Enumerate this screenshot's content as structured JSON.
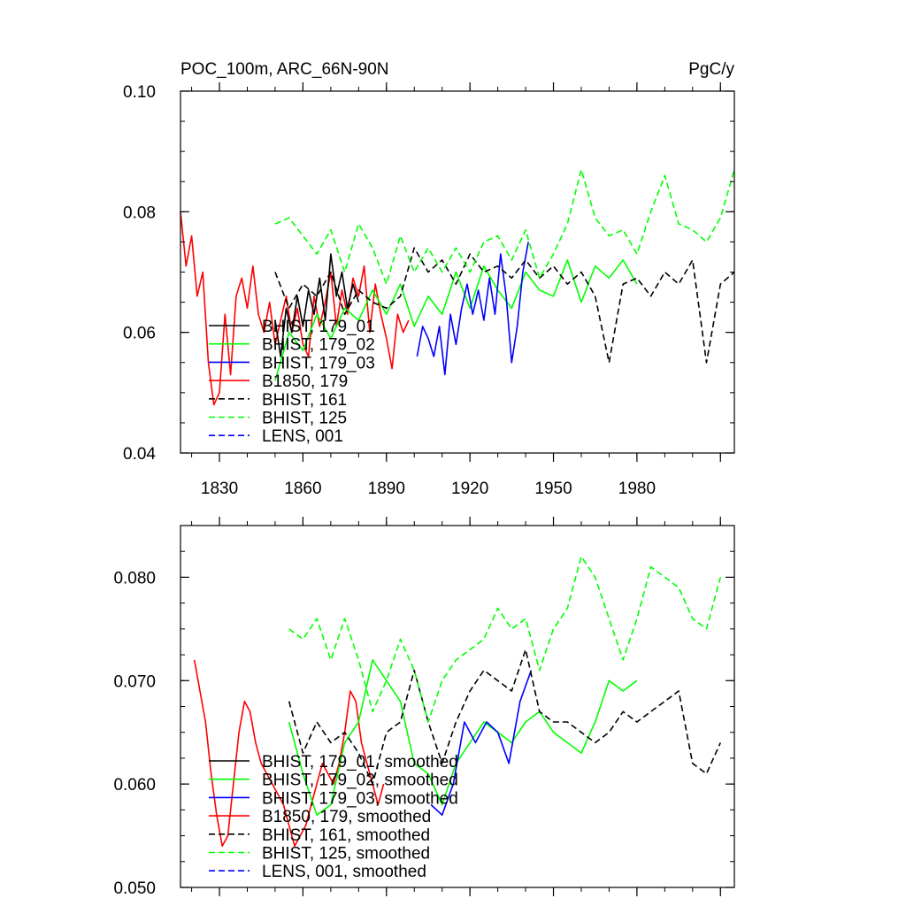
{
  "chart_data": [
    {
      "type": "line",
      "title_left": "POC_100m, ARC_66N-90N",
      "title_right": "PgC/y",
      "xlabel": "",
      "ylabel": "",
      "xlim": [
        1816,
        2015
      ],
      "ylim": [
        0.04,
        0.1
      ],
      "x_ticks": [
        1830,
        1860,
        1890,
        1920,
        1950,
        1980
      ],
      "x_tick_labels": [
        "1830",
        "1860",
        "1890",
        "1920",
        "1950",
        "1980"
      ],
      "y_ticks": [
        0.04,
        0.06,
        0.08,
        0.1
      ],
      "y_tick_labels": [
        "0.04",
        "0.06",
        "0.08",
        "0.10"
      ],
      "legend": [
        {
          "label": "BHIST, 179_01",
          "color": "#000000",
          "dash": "solid"
        },
        {
          "label": "BHIST, 179_02",
          "color": "#00ff00",
          "dash": "solid"
        },
        {
          "label": "BHIST, 179_03",
          "color": "#0000ff",
          "dash": "solid"
        },
        {
          "label": "B1850, 179",
          "color": "#ff0000",
          "dash": "solid"
        },
        {
          "label": "BHIST, 161",
          "color": "#000000",
          "dash": "dashed"
        },
        {
          "label": "BHIST, 125",
          "color": "#00ff00",
          "dash": "dashed"
        },
        {
          "label": "LENS, 001",
          "color": "#0000ff",
          "dash": "dashed"
        }
      ],
      "series": [
        {
          "name": "B1850, 179",
          "color": "#ff0000",
          "dash": "solid",
          "x": [
            1816,
            1818,
            1820,
            1822,
            1824,
            1826,
            1828,
            1830,
            1832,
            1834,
            1836,
            1838,
            1840,
            1842,
            1844,
            1846,
            1848,
            1850,
            1852,
            1854,
            1856,
            1858,
            1860,
            1862,
            1864,
            1866,
            1868,
            1870,
            1872,
            1874,
            1876,
            1878,
            1880,
            1882,
            1884,
            1886,
            1888,
            1890,
            1892,
            1894,
            1896,
            1898
          ],
          "y": [
            0.08,
            0.071,
            0.076,
            0.066,
            0.07,
            0.055,
            0.048,
            0.05,
            0.063,
            0.053,
            0.066,
            0.069,
            0.064,
            0.071,
            0.063,
            0.06,
            0.065,
            0.058,
            0.062,
            0.066,
            0.06,
            0.064,
            0.058,
            0.056,
            0.066,
            0.061,
            0.065,
            0.07,
            0.061,
            0.067,
            0.063,
            0.069,
            0.066,
            0.071,
            0.06,
            0.068,
            0.063,
            0.059,
            0.054,
            0.063,
            0.06,
            0.062
          ]
        },
        {
          "name": "BHIST, 179_01",
          "color": "#000000",
          "dash": "solid",
          "x": [
            1850,
            1852,
            1854,
            1856,
            1858,
            1860,
            1862,
            1864,
            1866,
            1868,
            1870,
            1872,
            1874,
            1876,
            1878,
            1880
          ],
          "y": [
            0.062,
            0.056,
            0.064,
            0.06,
            0.066,
            0.061,
            0.067,
            0.063,
            0.069,
            0.062,
            0.073,
            0.066,
            0.07,
            0.064,
            0.068,
            0.065
          ]
        },
        {
          "name": "BHIST, 179_02",
          "color": "#00ff00",
          "dash": "solid",
          "x": [
            1850,
            1855,
            1860,
            1865,
            1870,
            1875,
            1880,
            1885,
            1890,
            1895,
            1900,
            1905,
            1910,
            1915,
            1920,
            1925,
            1930,
            1935,
            1940,
            1945,
            1950,
            1955,
            1960,
            1965,
            1970,
            1975,
            1980
          ],
          "y": [
            0.052,
            0.06,
            0.057,
            0.063,
            0.059,
            0.064,
            0.062,
            0.067,
            0.063,
            0.068,
            0.061,
            0.066,
            0.063,
            0.07,
            0.064,
            0.071,
            0.067,
            0.064,
            0.07,
            0.067,
            0.066,
            0.072,
            0.065,
            0.071,
            0.069,
            0.072,
            0.068
          ]
        },
        {
          "name": "BHIST, 179_03",
          "color": "#0000ff",
          "dash": "solid",
          "x": [
            1901,
            1903,
            1905,
            1907,
            1909,
            1911,
            1913,
            1915,
            1917,
            1919,
            1921,
            1923,
            1925,
            1927,
            1929,
            1931,
            1933,
            1935,
            1937,
            1939,
            1941
          ],
          "y": [
            0.056,
            0.061,
            0.059,
            0.056,
            0.061,
            0.053,
            0.063,
            0.058,
            0.064,
            0.068,
            0.063,
            0.067,
            0.062,
            0.069,
            0.063,
            0.073,
            0.066,
            0.055,
            0.061,
            0.07,
            0.075
          ]
        },
        {
          "name": "BHIST, 161",
          "color": "#000000",
          "dash": "dashed",
          "x": [
            1850,
            1855,
            1860,
            1865,
            1870,
            1875,
            1880,
            1885,
            1890,
            1895,
            1900,
            1905,
            1910,
            1915,
            1920,
            1925,
            1930,
            1935,
            1940,
            1945,
            1950,
            1955,
            1960,
            1965,
            1970,
            1975,
            1980,
            1985,
            1990,
            1995,
            2000,
            2005,
            2010,
            2015
          ],
          "y": [
            0.07,
            0.064,
            0.068,
            0.066,
            0.07,
            0.063,
            0.067,
            0.065,
            0.064,
            0.066,
            0.074,
            0.07,
            0.072,
            0.068,
            0.073,
            0.07,
            0.071,
            0.069,
            0.072,
            0.069,
            0.071,
            0.068,
            0.07,
            0.066,
            0.055,
            0.068,
            0.069,
            0.066,
            0.07,
            0.068,
            0.072,
            0.055,
            0.068,
            0.07
          ]
        },
        {
          "name": "BHIST, 125",
          "color": "#00ff00",
          "dash": "dashed",
          "x": [
            1850,
            1855,
            1860,
            1865,
            1870,
            1875,
            1880,
            1885,
            1890,
            1895,
            1900,
            1905,
            1910,
            1915,
            1920,
            1925,
            1930,
            1935,
            1940,
            1945,
            1950,
            1955,
            1960,
            1965,
            1970,
            1975,
            1980,
            1985,
            1990,
            1995,
            2000,
            2005,
            2010,
            2015
          ],
          "y": [
            0.078,
            0.079,
            0.076,
            0.073,
            0.077,
            0.07,
            0.078,
            0.074,
            0.068,
            0.076,
            0.07,
            0.074,
            0.07,
            0.074,
            0.07,
            0.075,
            0.076,
            0.072,
            0.077,
            0.069,
            0.073,
            0.078,
            0.087,
            0.079,
            0.076,
            0.077,
            0.073,
            0.08,
            0.086,
            0.078,
            0.077,
            0.075,
            0.079,
            0.087
          ]
        }
      ]
    },
    {
      "type": "line",
      "xlabel": "",
      "ylabel": "",
      "xlim": [
        1816,
        2015
      ],
      "ylim": [
        0.05,
        0.085
      ],
      "y_ticks": [
        0.05,
        0.06,
        0.07,
        0.08
      ],
      "y_tick_labels": [
        "0.050",
        "0.060",
        "0.070",
        "0.080"
      ],
      "legend": [
        {
          "label": "BHIST, 179_01, smoothed",
          "color": "#000000",
          "dash": "solid"
        },
        {
          "label": "BHIST, 179_02, smoothed",
          "color": "#00ff00",
          "dash": "solid"
        },
        {
          "label": "BHIST, 179_03, smoothed",
          "color": "#0000ff",
          "dash": "solid"
        },
        {
          "label": "B1850, 179, smoothed",
          "color": "#ff0000",
          "dash": "solid"
        },
        {
          "label": "BHIST, 161, smoothed",
          "color": "#000000",
          "dash": "dashed"
        },
        {
          "label": "BHIST, 125, smoothed",
          "color": "#00ff00",
          "dash": "dashed"
        },
        {
          "label": "LENS, 001, smoothed",
          "color": "#0000ff",
          "dash": "dashed"
        }
      ],
      "series": [
        {
          "name": "B1850, 179, smoothed",
          "color": "#ff0000",
          "dash": "solid",
          "x": [
            1821,
            1823,
            1825,
            1827,
            1829,
            1831,
            1833,
            1835,
            1837,
            1839,
            1841,
            1843,
            1845,
            1847,
            1849,
            1851,
            1853,
            1855,
            1857,
            1859,
            1861,
            1863,
            1865,
            1867,
            1869,
            1871,
            1873,
            1875,
            1877,
            1879,
            1881,
            1883,
            1885,
            1887,
            1889
          ],
          "y": [
            0.072,
            0.069,
            0.066,
            0.061,
            0.057,
            0.054,
            0.055,
            0.06,
            0.065,
            0.068,
            0.067,
            0.064,
            0.062,
            0.061,
            0.06,
            0.059,
            0.058,
            0.056,
            0.054,
            0.055,
            0.056,
            0.058,
            0.06,
            0.062,
            0.061,
            0.06,
            0.062,
            0.065,
            0.069,
            0.068,
            0.064,
            0.062,
            0.06,
            0.058,
            0.06
          ]
        },
        {
          "name": "BHIST, 179_02, smoothed",
          "color": "#00ff00",
          "dash": "solid",
          "x": [
            1855,
            1860,
            1865,
            1870,
            1875,
            1880,
            1885,
            1890,
            1895,
            1900,
            1905,
            1910,
            1915,
            1920,
            1925,
            1930,
            1935,
            1940,
            1945,
            1950,
            1955,
            1960,
            1965,
            1970,
            1975,
            1980
          ],
          "y": [
            0.066,
            0.061,
            0.057,
            0.058,
            0.064,
            0.066,
            0.072,
            0.07,
            0.068,
            0.062,
            0.061,
            0.058,
            0.062,
            0.064,
            0.066,
            0.065,
            0.064,
            0.066,
            0.067,
            0.065,
            0.064,
            0.063,
            0.066,
            0.07,
            0.069,
            0.07
          ]
        },
        {
          "name": "BHIST, 179_03, smoothed",
          "color": "#0000ff",
          "dash": "solid",
          "x": [
            1906,
            1910,
            1914,
            1918,
            1922,
            1926,
            1930,
            1934,
            1938,
            1942
          ],
          "y": [
            0.058,
            0.057,
            0.06,
            0.066,
            0.064,
            0.066,
            0.065,
            0.062,
            0.068,
            0.071
          ]
        },
        {
          "name": "BHIST, 161, smoothed",
          "color": "#000000",
          "dash": "dashed",
          "x": [
            1855,
            1860,
            1865,
            1870,
            1875,
            1880,
            1885,
            1890,
            1895,
            1900,
            1905,
            1910,
            1915,
            1920,
            1925,
            1930,
            1935,
            1940,
            1945,
            1950,
            1955,
            1960,
            1965,
            1970,
            1975,
            1980,
            1985,
            1990,
            1995,
            2000,
            2005,
            2010
          ],
          "y": [
            0.068,
            0.063,
            0.066,
            0.064,
            0.065,
            0.063,
            0.06,
            0.065,
            0.066,
            0.071,
            0.066,
            0.062,
            0.066,
            0.069,
            0.071,
            0.07,
            0.069,
            0.073,
            0.067,
            0.066,
            0.066,
            0.065,
            0.064,
            0.065,
            0.067,
            0.066,
            0.067,
            0.068,
            0.069,
            0.062,
            0.061,
            0.064
          ]
        },
        {
          "name": "BHIST, 125, smoothed",
          "color": "#00ff00",
          "dash": "dashed",
          "x": [
            1855,
            1860,
            1865,
            1870,
            1875,
            1880,
            1885,
            1890,
            1895,
            1900,
            1905,
            1910,
            1915,
            1920,
            1925,
            1930,
            1935,
            1940,
            1945,
            1950,
            1955,
            1960,
            1965,
            1970,
            1975,
            1980,
            1985,
            1990,
            1995,
            2000,
            2005,
            2010
          ],
          "y": [
            0.075,
            0.074,
            0.076,
            0.072,
            0.076,
            0.072,
            0.067,
            0.07,
            0.074,
            0.071,
            0.066,
            0.07,
            0.072,
            0.073,
            0.074,
            0.077,
            0.075,
            0.076,
            0.071,
            0.075,
            0.077,
            0.082,
            0.08,
            0.076,
            0.072,
            0.076,
            0.081,
            0.08,
            0.079,
            0.076,
            0.075,
            0.08
          ]
        }
      ]
    }
  ]
}
